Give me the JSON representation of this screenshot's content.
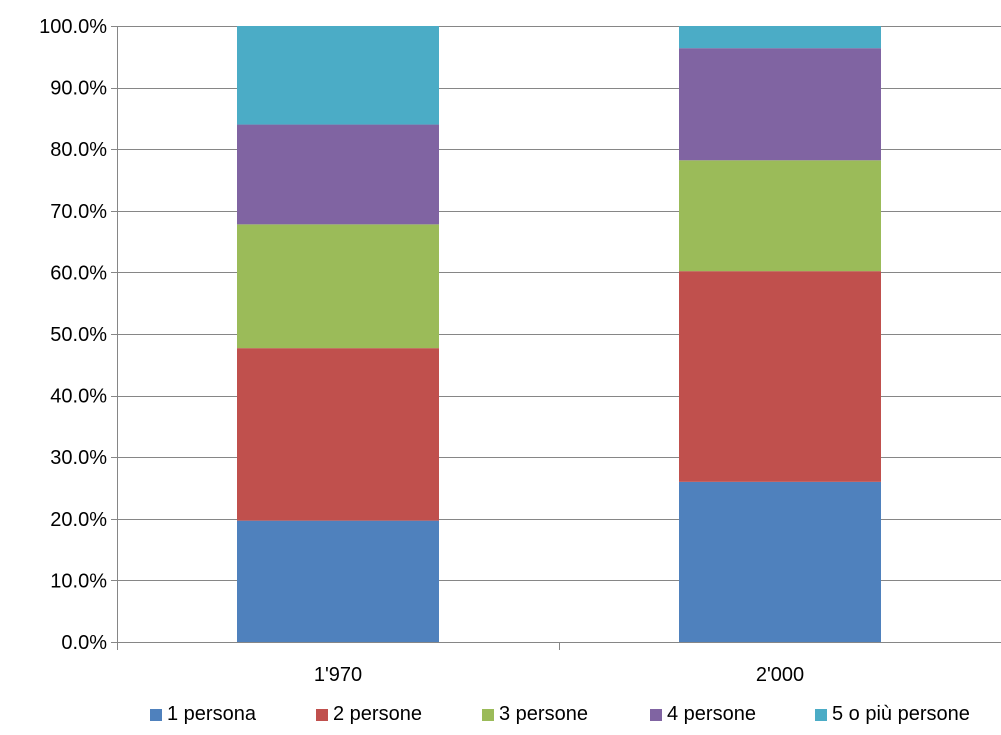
{
  "chart_data": {
    "type": "bar",
    "stacked": true,
    "title": "",
    "xlabel": "",
    "ylabel": "",
    "categories": [
      "1'970",
      "2'000"
    ],
    "ylim": [
      0,
      100
    ],
    "yticks": [
      0,
      10,
      20,
      30,
      40,
      50,
      60,
      70,
      80,
      90,
      100
    ],
    "ytick_labels": [
      "0.0%",
      "10.0%",
      "20.0%",
      "30.0%",
      "40.0%",
      "50.0%",
      "60.0%",
      "70.0%",
      "80.0%",
      "90.0%",
      "100.0%"
    ],
    "grid": true,
    "legend_position": "bottom",
    "series": [
      {
        "name": "1 persona",
        "color": "#4F81BD",
        "values": [
          19.7,
          26.0
        ]
      },
      {
        "name": "2 persone",
        "color": "#C0504D",
        "values": [
          28.0,
          34.2
        ]
      },
      {
        "name": "3 persone",
        "color": "#9BBB59",
        "values": [
          20.1,
          18.0
        ]
      },
      {
        "name": "4 persone",
        "color": "#8064A2",
        "values": [
          16.2,
          18.2
        ]
      },
      {
        "name": "5 o più persone",
        "color": "#4BACC6",
        "values": [
          16.0,
          3.6
        ]
      }
    ]
  }
}
